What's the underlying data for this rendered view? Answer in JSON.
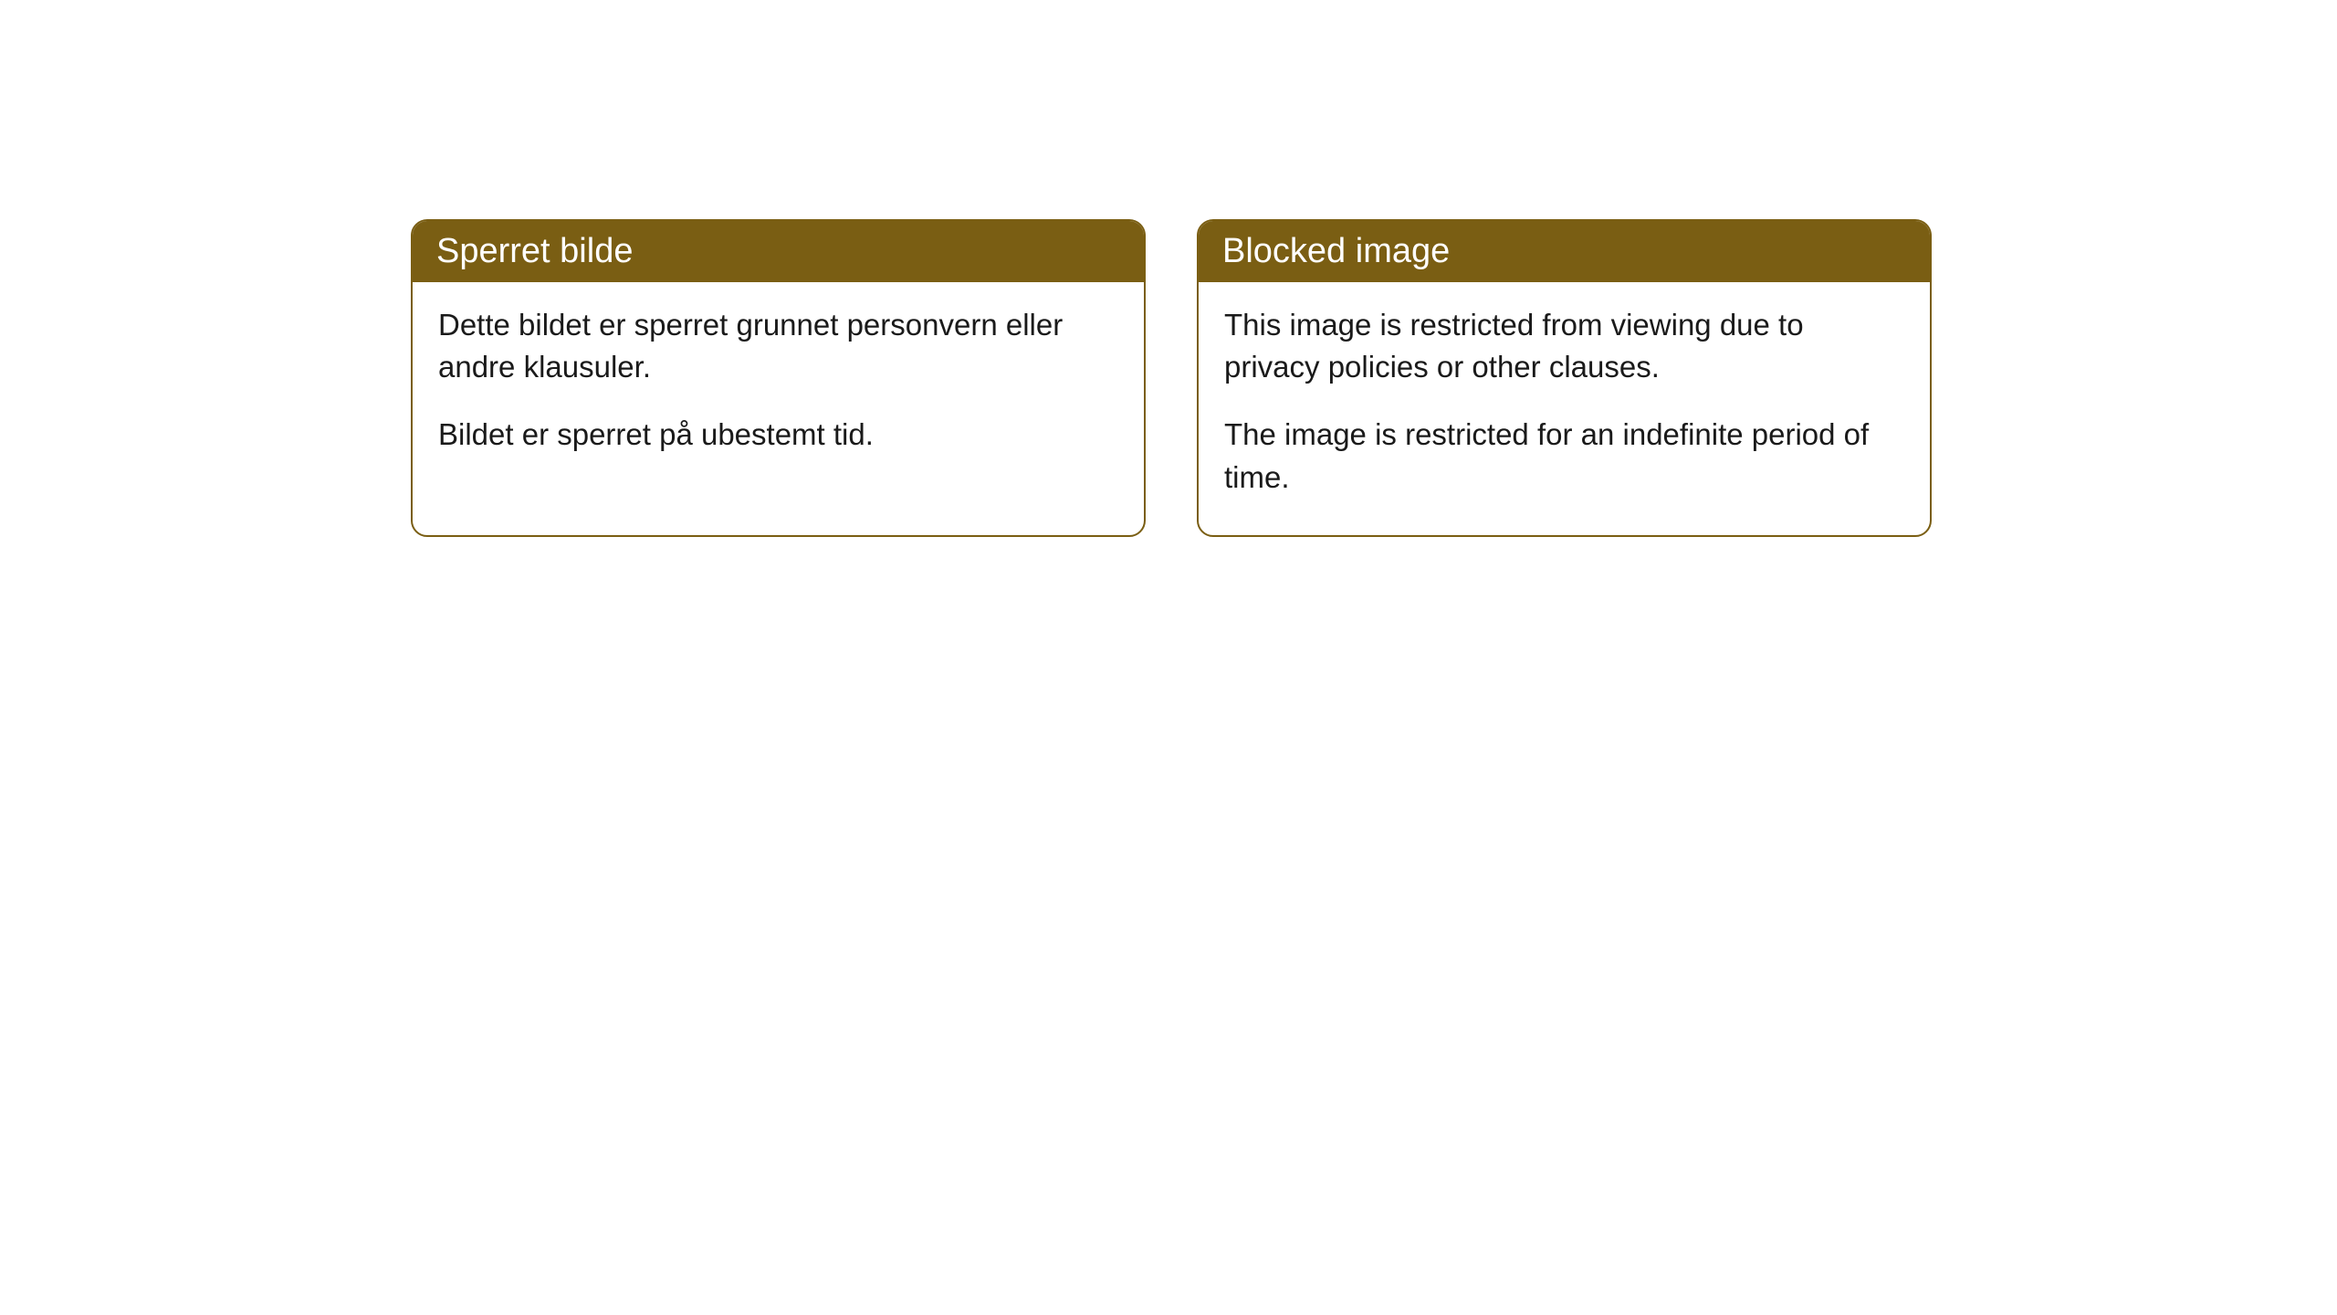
{
  "style": {
    "header_bg_color": "#7a5e13",
    "header_text_color": "#ffffff",
    "border_color": "#7a5e13",
    "body_bg_color": "#ffffff",
    "body_text_color": "#1a1a1a",
    "border_radius": 18,
    "header_fontsize": 38,
    "body_fontsize": 33
  },
  "cards": [
    {
      "title": "Sperret bilde",
      "paragraph1": "Dette bildet er sperret grunnet personvern eller andre klausuler.",
      "paragraph2": "Bildet er sperret på ubestemt tid."
    },
    {
      "title": "Blocked image",
      "paragraph1": "This image is restricted from viewing due to privacy policies or other clauses.",
      "paragraph2": "The image is restricted for an indefinite period of time."
    }
  ]
}
